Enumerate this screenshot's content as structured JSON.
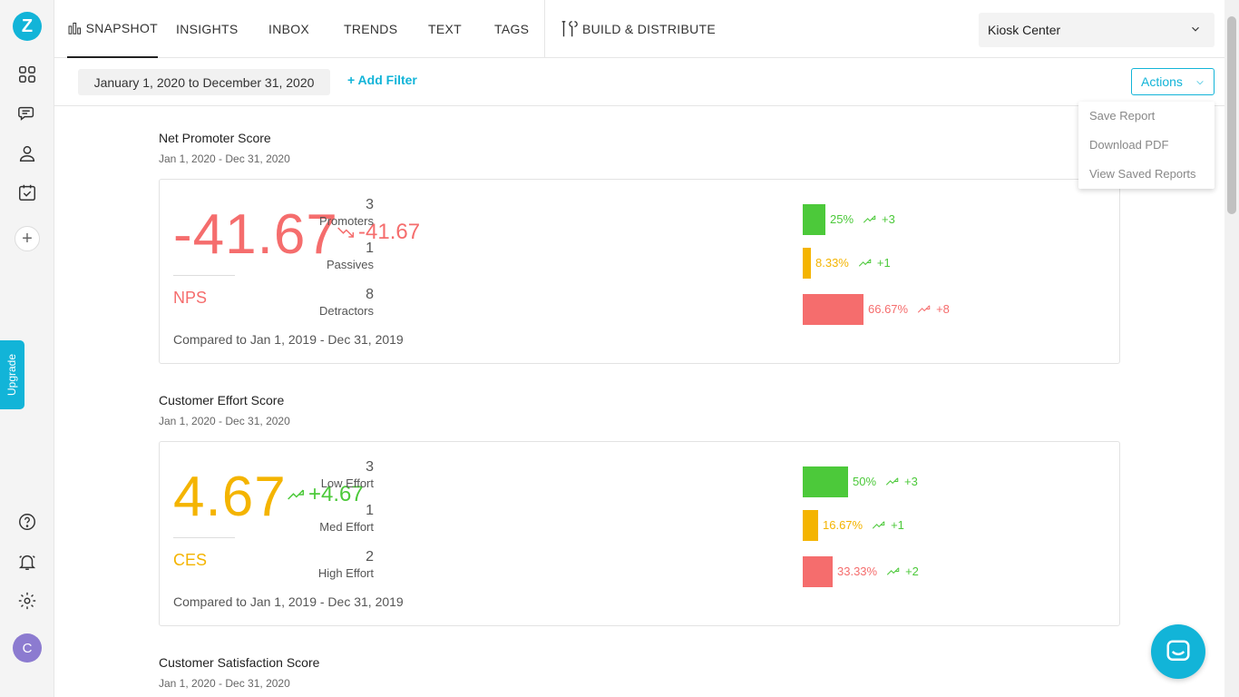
{
  "app": {
    "logo_letter": "Z",
    "upgrade_label": "Upgrade",
    "avatar_initial": "C"
  },
  "colors": {
    "accent": "#12b4d8",
    "green": "#4cc93a",
    "yellow": "#f4b400",
    "red": "#f56d6d"
  },
  "nav": {
    "tabs": [
      {
        "label": "SNAPSHOT",
        "active": true
      },
      {
        "label": "INSIGHTS"
      },
      {
        "label": "INBOX"
      },
      {
        "label": "TRENDS"
      },
      {
        "label": "TEXT"
      },
      {
        "label": "TAGS"
      }
    ],
    "build_label": "BUILD & DISTRIBUTE",
    "account": "Kiosk Center"
  },
  "filters": {
    "date_range": "January 1, 2020 to December 31, 2020",
    "add_filter": "+ Add Filter",
    "actions": "Actions",
    "actions_menu": [
      "Save Report",
      "Download PDF",
      "View Saved Reports"
    ]
  },
  "sections": {
    "nps": {
      "title": "Net Promoter Score",
      "date": "Jan 1, 2020 - Dec 31, 2020",
      "score": "-41.67",
      "delta": "-41.67",
      "abbr": "NPS",
      "compare": "Compared to Jan 1, 2019 - Dec 31, 2019",
      "rows": [
        {
          "count": "3",
          "label": "Promoters",
          "pct": "25%",
          "change": "+3",
          "fraction": 0.25
        },
        {
          "count": "1",
          "label": "Passives",
          "pct": "8.33%",
          "change": "+1",
          "fraction": 0.0833
        },
        {
          "count": "8",
          "label": "Detractors",
          "pct": "66.67%",
          "change": "+8",
          "fraction": 0.6667
        }
      ]
    },
    "ces": {
      "title": "Customer Effort Score",
      "date": "Jan 1, 2020 - Dec 31, 2020",
      "score": "4.67",
      "delta": "+4.67",
      "abbr": "CES",
      "compare": "Compared to Jan 1, 2019 - Dec 31, 2019",
      "rows": [
        {
          "count": "3",
          "label": "Low Effort",
          "pct": "50%",
          "change": "+3",
          "fraction": 0.5
        },
        {
          "count": "1",
          "label": "Med Effort",
          "pct": "16.67%",
          "change": "+1",
          "fraction": 0.1667
        },
        {
          "count": "2",
          "label": "High Effort",
          "pct": "33.33%",
          "change": "+2",
          "fraction": 0.3333
        }
      ]
    },
    "csat": {
      "title": "Customer Satisfaction Score",
      "date": "Jan 1, 2020 - Dec 31, 2020"
    }
  }
}
